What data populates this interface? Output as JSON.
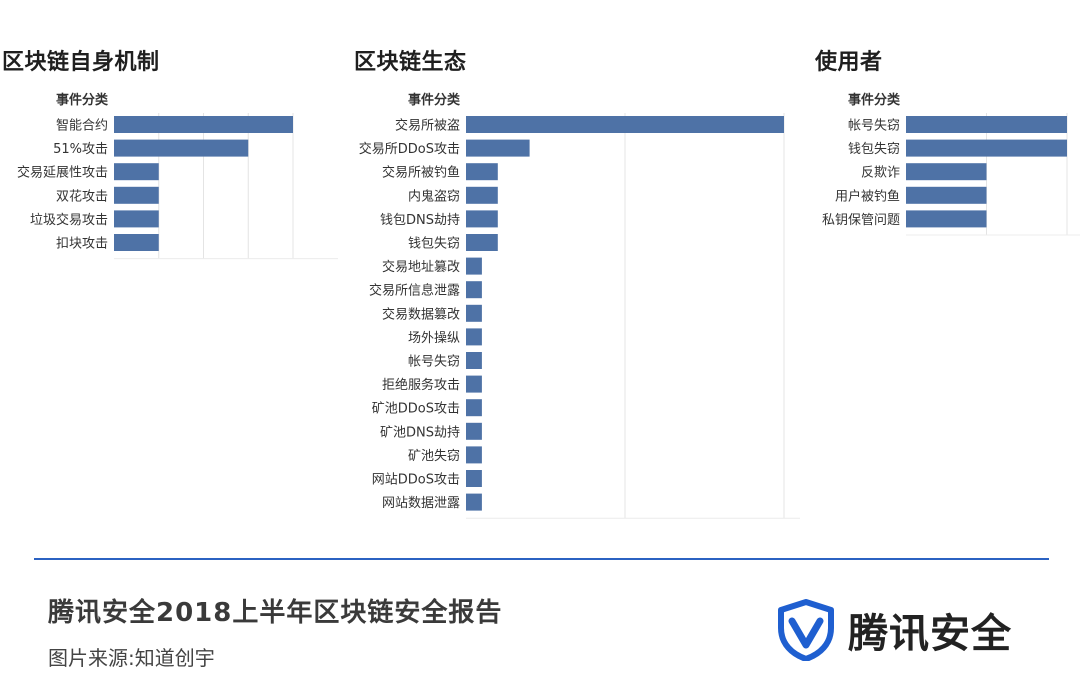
{
  "chart_data": [
    {
      "type": "bar",
      "orientation": "horizontal",
      "title": "区块链自身机制",
      "category_header": "事件分类",
      "categories": [
        "智能合约",
        "51%攻击",
        "交易延展性攻击",
        "双花攻击",
        "垃圾交易攻击",
        "扣块攻击"
      ],
      "values": [
        4,
        3,
        1,
        1,
        1,
        1
      ],
      "xlim": [
        0,
        4
      ],
      "grid": true,
      "color": "#4e72a6"
    },
    {
      "type": "bar",
      "orientation": "horizontal",
      "title": "区块链生态",
      "category_header": "事件分类",
      "categories": [
        "交易所被盗",
        "交易所DDoS攻击",
        "交易所被钓鱼",
        "内鬼盗窃",
        "钱包DNS劫持",
        "钱包失窃",
        "交易地址篡改",
        "交易所信息泄露",
        "交易数据篡改",
        "场外操纵",
        "帐号失窃",
        "拒绝服务攻击",
        "矿池DDoS攻击",
        "矿池DNS劫持",
        "矿池失窃",
        "网站DDoS攻击",
        "网站数据泄露"
      ],
      "values": [
        20,
        4,
        2,
        2,
        2,
        2,
        1,
        1,
        1,
        1,
        1,
        1,
        1,
        1,
        1,
        1,
        1
      ],
      "xlim": [
        0,
        21
      ],
      "grid": true,
      "color": "#4e72a6"
    },
    {
      "type": "bar",
      "orientation": "horizontal",
      "title": "使用者",
      "category_header": "事件分类",
      "categories": [
        "帐号失窃",
        "钱包失窃",
        "反欺诈",
        "用户被钓鱼",
        "私钥保管问题"
      ],
      "values": [
        2,
        2,
        1,
        1,
        1
      ],
      "xlim": [
        0,
        2
      ],
      "grid": true,
      "color": "#4e72a6"
    }
  ],
  "footer": {
    "report_title": "腾讯安全2018上半年区块链安全报告",
    "source": "图片来源:知道创宇",
    "brand_name": "腾讯安全",
    "brand_logo_icon": "shield-v-icon",
    "brand_color": "#1f5fd0"
  }
}
